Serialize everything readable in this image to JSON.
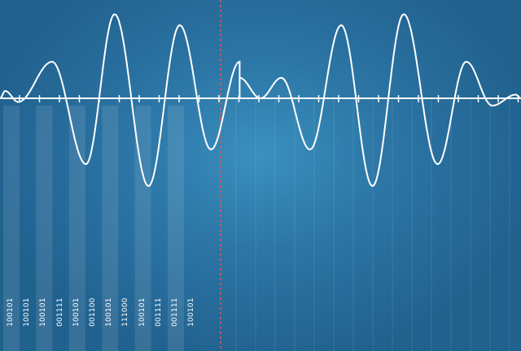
{
  "binary_labels": [
    "100101",
    "100101",
    "100101",
    "001111",
    "100101",
    "001100",
    "100101",
    "111000",
    "100101",
    "001111",
    "001111",
    "100101"
  ],
  "colors": {
    "background": "#2c76a6",
    "wave": "#ffffff",
    "divider": "#d45a5a"
  },
  "signal": {
    "left_peaks": [
      {
        "t": 0.01,
        "a": 0.1
      },
      {
        "t": 0.035,
        "a": -0.05
      },
      {
        "t": 0.1,
        "a": 0.5
      },
      {
        "t": 0.165,
        "a": -0.9
      },
      {
        "t": 0.22,
        "a": 1.15
      },
      {
        "t": 0.285,
        "a": -1.2
      },
      {
        "t": 0.345,
        "a": 1.0
      },
      {
        "t": 0.405,
        "a": -0.7
      },
      {
        "t": 0.46,
        "a": 0.5
      }
    ],
    "right_peaks": [
      {
        "t": 0.46,
        "a": 0.28
      },
      {
        "t": 0.5,
        "a": 0.0
      },
      {
        "t": 0.54,
        "a": 0.28
      },
      {
        "t": 0.595,
        "a": -0.7
      },
      {
        "t": 0.655,
        "a": 1.0
      },
      {
        "t": 0.715,
        "a": -1.2
      },
      {
        "t": 0.775,
        "a": 1.15
      },
      {
        "t": 0.84,
        "a": -0.9
      },
      {
        "t": 0.895,
        "a": 0.5
      },
      {
        "t": 0.945,
        "a": -0.1
      },
      {
        "t": 0.99,
        "a": 0.05
      }
    ]
  }
}
